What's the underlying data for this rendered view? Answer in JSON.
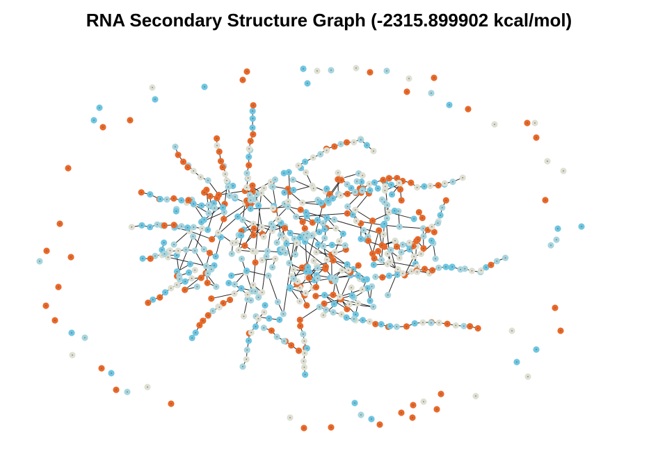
{
  "title": "RNA Secondary Structure Graph (-2315.899902 kcal/mol)",
  "colors": {
    "orange": "#e8692a",
    "blue": "#6fc6e2",
    "light_blue": "#a7d5df",
    "beige": "#dfe0d4",
    "edge": "#222222",
    "dot": "#5a4a3a"
  }
}
